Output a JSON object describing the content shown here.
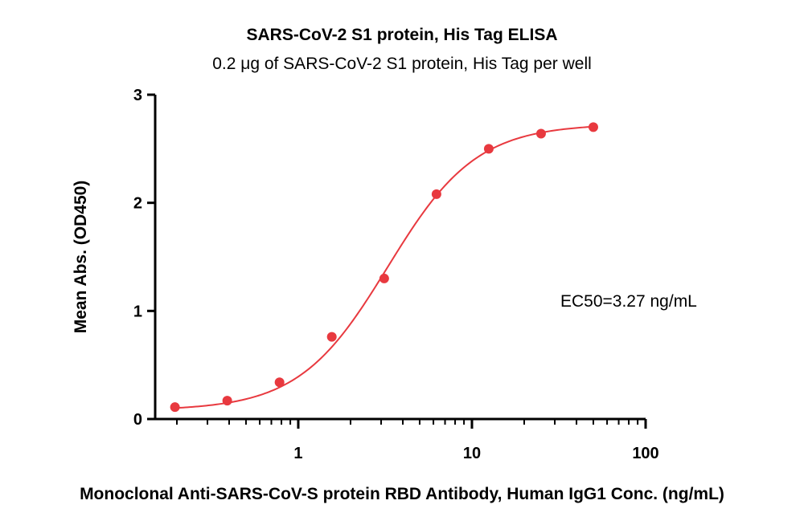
{
  "chart_data": {
    "type": "scatter",
    "title": "SARS-CoV-2 S1 protein, His Tag ELISA",
    "subtitle": "0.2 μg of SARS-CoV-2 S1 protein, His Tag per well",
    "xlabel": "Monoclonal Anti-SARS-CoV-S protein RBD Antibody, Human IgG1 Conc. (ng/mL)",
    "ylabel": "Mean Abs. (OD450)",
    "x_scale": "log",
    "xlim": [
      0.15,
      100
    ],
    "ylim": [
      0,
      3
    ],
    "x_ticks": [
      1,
      10,
      100
    ],
    "x_tick_labels": [
      "1",
      "10",
      "100"
    ],
    "y_ticks": [
      0,
      1,
      2,
      3
    ],
    "y_tick_labels": [
      "0",
      "1",
      "2",
      "3"
    ],
    "series": [
      {
        "x": [
          0.195,
          0.39,
          0.78,
          1.56,
          3.125,
          6.25,
          12.5,
          25,
          50
        ],
        "y": [
          0.11,
          0.17,
          0.34,
          0.76,
          1.3,
          2.08,
          2.5,
          2.64,
          2.7
        ],
        "color": "#e8393f",
        "fit": "4PL"
      }
    ],
    "fit_params": {
      "bottom": 0.08,
      "top": 2.73,
      "ec50": 3.27,
      "hill": 1.7
    },
    "annotations": [
      {
        "text": "EC50=3.27 ng/mL"
      }
    ],
    "grid": false
  }
}
